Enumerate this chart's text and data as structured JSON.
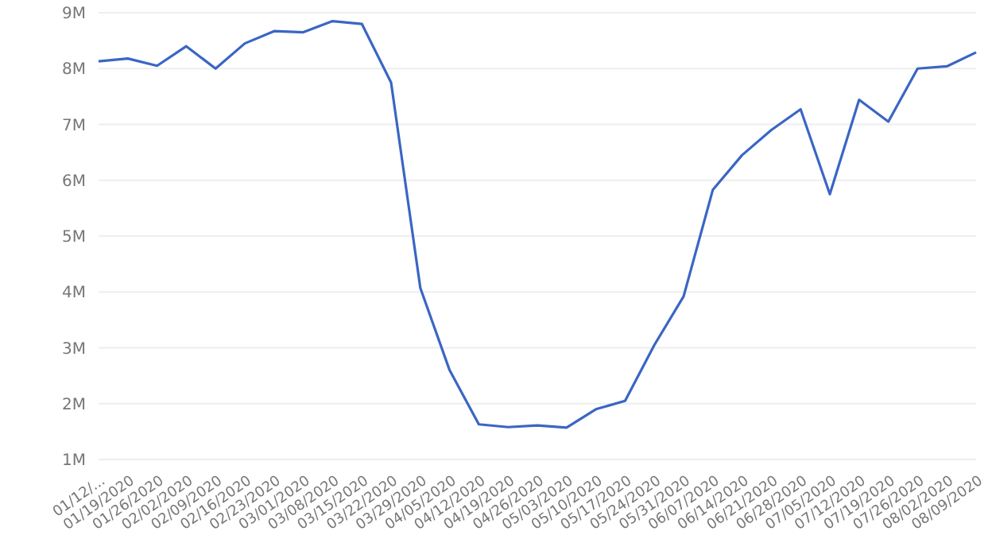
{
  "chart_data": {
    "type": "line",
    "categories": [
      "01/12/...",
      "01/19/2020",
      "01/26/2020",
      "02/02/2020",
      "02/09/2020",
      "02/16/2020",
      "02/23/2020",
      "03/01/2020",
      "03/08/2020",
      "03/15/2020",
      "03/22/2020",
      "03/29/2020",
      "04/05/2020",
      "04/12/2020",
      "04/19/2020",
      "04/26/2020",
      "05/03/2020",
      "05/10/2020",
      "05/17/2020",
      "05/24/2020",
      "05/31/2020",
      "06/07/2020",
      "06/14/2020",
      "06/21/2020",
      "06/28/2020",
      "07/05/2020",
      "07/12/2020",
      "07/19/2020",
      "07/26/2020",
      "08/02/2020",
      "08/09/2020"
    ],
    "series": [
      {
        "color": "#3a66c4",
        "values": [
          8130000,
          8180000,
          8050000,
          8400000,
          8000000,
          8450000,
          8670000,
          8650000,
          8850000,
          8800000,
          7750000,
          4070000,
          2600000,
          1630000,
          1580000,
          1610000,
          1570000,
          1900000,
          2050000,
          3050000,
          3920000,
          5830000,
          6450000,
          6900000,
          7270000,
          5750000,
          7440000,
          7050000,
          8000000,
          8040000,
          8290000
        ]
      }
    ],
    "ylim": [
      1000000,
      9000000
    ],
    "yticks": [
      {
        "value": 1000000,
        "label": "1M"
      },
      {
        "value": 2000000,
        "label": "2M"
      },
      {
        "value": 3000000,
        "label": "3M"
      },
      {
        "value": 4000000,
        "label": "4M"
      },
      {
        "value": 5000000,
        "label": "5M"
      },
      {
        "value": 6000000,
        "label": "6M"
      },
      {
        "value": 7000000,
        "label": "7M"
      },
      {
        "value": 8000000,
        "label": "8M"
      },
      {
        "value": 9000000,
        "label": "9M"
      }
    ],
    "grid": "y",
    "marker": "none",
    "line_style": "solid"
  }
}
